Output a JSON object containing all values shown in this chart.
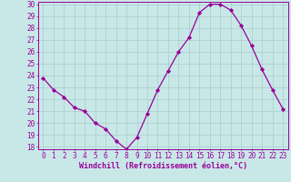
{
  "x": [
    0,
    1,
    2,
    3,
    4,
    5,
    6,
    7,
    8,
    9,
    10,
    11,
    12,
    13,
    14,
    15,
    16,
    17,
    18,
    19,
    20,
    21,
    22,
    23
  ],
  "y": [
    23.8,
    22.8,
    22.2,
    21.3,
    21.0,
    20.0,
    19.5,
    18.5,
    17.8,
    18.8,
    20.8,
    22.8,
    24.4,
    26.0,
    27.2,
    29.3,
    30.0,
    30.0,
    29.5,
    28.2,
    26.5,
    24.5,
    22.8,
    21.2
  ],
  "line_color": "#990099",
  "marker": "D",
  "marker_size": 2.2,
  "bg_color": "#c8e8e8",
  "grid_color": "#aacccc",
  "xlabel": "Windchill (Refroidissement éolien,°C)",
  "xlabel_color": "#990099",
  "tick_color": "#990099",
  "spine_color": "#990099",
  "ylim": [
    18,
    30
  ],
  "xlim": [
    -0.5,
    23.5
  ],
  "yticks": [
    18,
    19,
    20,
    21,
    22,
    23,
    24,
    25,
    26,
    27,
    28,
    29,
    30
  ],
  "xticks": [
    0,
    1,
    2,
    3,
    4,
    5,
    6,
    7,
    8,
    9,
    10,
    11,
    12,
    13,
    14,
    15,
    16,
    17,
    18,
    19,
    20,
    21,
    22,
    23
  ],
  "tick_fontsize": 5.5,
  "xlabel_fontsize": 6.0,
  "linewidth": 0.9
}
